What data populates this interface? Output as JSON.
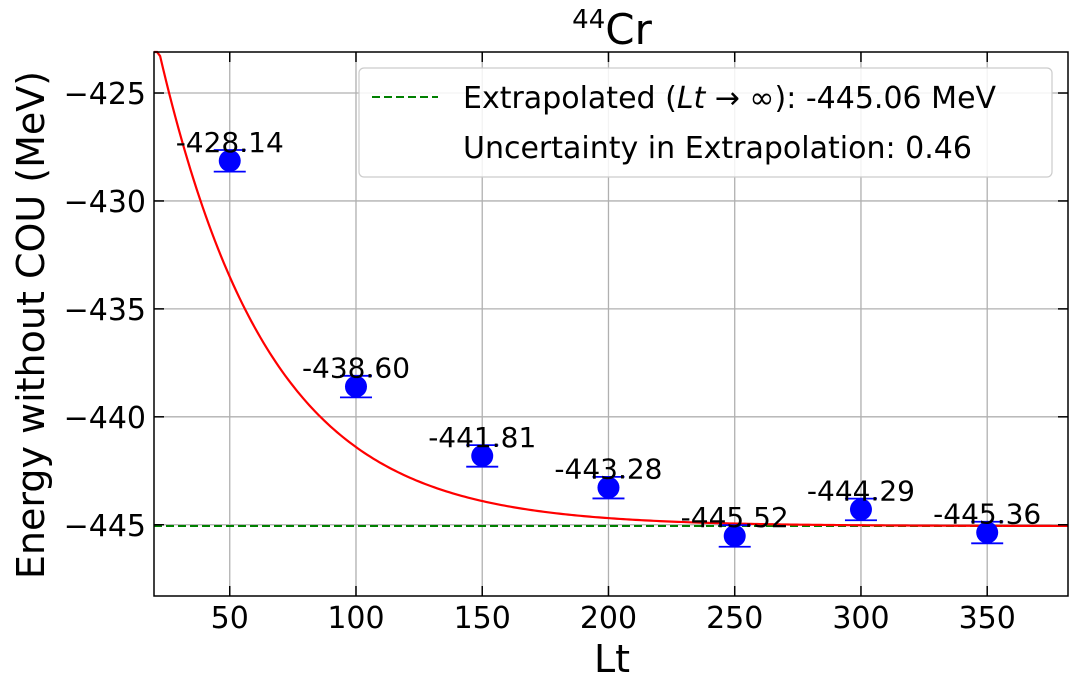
{
  "chart_data": {
    "type": "scatter",
    "title_sup": "44",
    "title_main": "Cr",
    "xlabel": "Lt",
    "ylabel": "Energy without COU (MeV)",
    "xlim": [
      20,
      382
    ],
    "ylim": [
      -448.3,
      -423.1
    ],
    "xticks": [
      50,
      100,
      150,
      200,
      250,
      300,
      350
    ],
    "xtick_labels": [
      "50",
      "100",
      "150",
      "200",
      "250",
      "300",
      "350"
    ],
    "yticks": [
      -425,
      -430,
      -435,
      -440,
      -445
    ],
    "ytick_labels": [
      "−425",
      "−430",
      "−435",
      "−440",
      "−445"
    ],
    "grid": true,
    "points": [
      {
        "x": 50,
        "y": -428.14,
        "err": 0.5,
        "label": "-428.14"
      },
      {
        "x": 100,
        "y": -438.6,
        "err": 0.5,
        "label": "-438.60"
      },
      {
        "x": 150,
        "y": -441.81,
        "err": 0.5,
        "label": "-441.81"
      },
      {
        "x": 200,
        "y": -443.28,
        "err": 0.5,
        "label": "-443.28"
      },
      {
        "x": 250,
        "y": -445.52,
        "err": 0.5,
        "label": "-445.52"
      },
      {
        "x": 300,
        "y": -444.29,
        "err": 0.5,
        "label": "-444.29"
      },
      {
        "x": 350,
        "y": -445.36,
        "err": 0.5,
        "label": "-445.36"
      }
    ],
    "fit_curve": {
      "model": "E_inf + A*exp(-Lt/tau)",
      "E_inf": -445.06,
      "A": 36.45,
      "tau": 43.5,
      "x_range": [
        20,
        382
      ]
    },
    "extrapolated_value": -445.06,
    "legend_position": "top-right",
    "legend": {
      "line1_prefix": "Extrapolated (",
      "line1_math": "Lt",
      "line1_arrow": " → ∞",
      "line1_suffix": "): -445.06 MeV",
      "line2": "Uncertainty in Extrapolation: 0.46"
    },
    "colors": {
      "points": "#0000ff",
      "fit": "#ff0000",
      "extrapolated": "#008000",
      "grid": "#b0b0b0",
      "axis": "#000000"
    }
  }
}
